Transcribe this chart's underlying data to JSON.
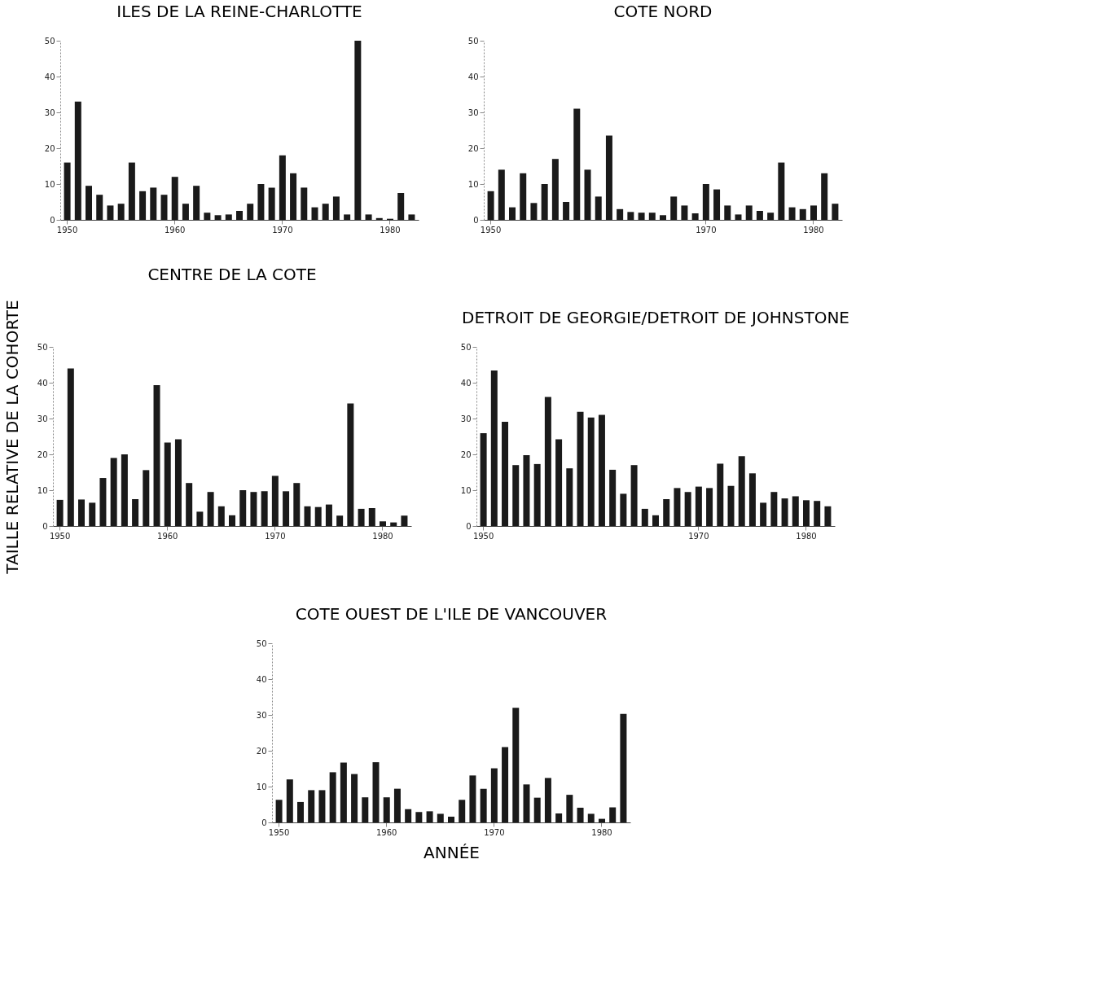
{
  "chart_data": [
    {
      "type": "bar",
      "title": "ILES DE LA REINE-CHARLOTTE",
      "color": "#1a1a1a",
      "grid": false,
      "ylim": [
        0,
        50
      ],
      "yticks": [
        0,
        10,
        20,
        30,
        40,
        50
      ],
      "categories": [
        "1950",
        null,
        null,
        null,
        null,
        null,
        null,
        null,
        null,
        null,
        "1960",
        null,
        null,
        null,
        null,
        null,
        null,
        null,
        null,
        null,
        "1970",
        null,
        null,
        null,
        null,
        null,
        null,
        null,
        null,
        null,
        "1980",
        null,
        null
      ],
      "values": [
        16,
        33,
        9.5,
        7,
        4,
        4.5,
        16,
        8,
        9,
        7,
        12,
        4.5,
        9.5,
        2,
        1.3,
        1.5,
        2.5,
        4.5,
        10,
        9,
        18,
        13,
        9,
        3.5,
        4.5,
        6.5,
        1.5,
        50,
        1.5,
        0.5,
        0.3,
        7.5,
        1.5
      ]
    },
    {
      "type": "bar",
      "title": "COTE NORD",
      "color": "#1a1a1a",
      "grid": false,
      "ylim": [
        0,
        50
      ],
      "yticks": [
        0,
        10,
        20,
        30,
        40,
        50
      ],
      "categories": [
        "1950",
        null,
        null,
        null,
        null,
        null,
        null,
        null,
        null,
        null,
        null,
        null,
        null,
        null,
        null,
        null,
        null,
        null,
        null,
        null,
        "1970",
        null,
        null,
        null,
        null,
        null,
        null,
        null,
        null,
        null,
        "1980",
        null,
        null
      ],
      "values": [
        8,
        14,
        3.5,
        13,
        4.7,
        10,
        17,
        5,
        31,
        14,
        6.5,
        23.5,
        3,
        2.2,
        2,
        2,
        1.3,
        6.5,
        4,
        1.8,
        10,
        8.5,
        4,
        1.5,
        4,
        2.5,
        2,
        16,
        3.5,
        3,
        4,
        13,
        4.5
      ]
    },
    {
      "type": "bar",
      "title": "CENTRE DE LA COTE",
      "ylabel": "TAILLE RELATIVE DE LA COHORTE",
      "color": "#1a1a1a",
      "grid": false,
      "ylim": [
        0,
        50
      ],
      "yticks": [
        0,
        10,
        20,
        30,
        40,
        50
      ],
      "categories": [
        "1950",
        null,
        null,
        null,
        null,
        null,
        null,
        null,
        null,
        null,
        "1960",
        null,
        null,
        null,
        null,
        null,
        null,
        null,
        null,
        null,
        "1970",
        null,
        null,
        null,
        null,
        null,
        null,
        null,
        null,
        null,
        "1980",
        null,
        null
      ],
      "values": [
        7.3,
        44,
        7.4,
        6.5,
        13.4,
        19,
        20,
        7.5,
        15.6,
        39.3,
        23.3,
        24.2,
        12,
        4,
        9.5,
        5.5,
        3,
        10,
        9.5,
        9.7,
        14,
        9.7,
        12,
        5.5,
        5.3,
        6,
        2.9,
        34.2,
        4.8,
        5,
        1.3,
        1,
        2.9
      ]
    },
    {
      "type": "bar",
      "title": "DETROIT DE GEORGIE/DETROIT DE JOHNSTONE",
      "color": "#1a1a1a",
      "grid": false,
      "ylim": [
        0,
        50
      ],
      "yticks": [
        0,
        10,
        20,
        30,
        40,
        50
      ],
      "categories": [
        "1950",
        null,
        null,
        null,
        null,
        null,
        null,
        null,
        null,
        null,
        null,
        null,
        null,
        null,
        null,
        null,
        null,
        null,
        null,
        null,
        "1970",
        null,
        null,
        null,
        null,
        null,
        null,
        null,
        null,
        null,
        "1980",
        null,
        null
      ],
      "values": [
        25.9,
        43.4,
        29.1,
        17,
        19.8,
        17.3,
        36,
        24.2,
        16.1,
        31.9,
        30.3,
        31,
        15.7,
        9,
        17,
        4.8,
        3,
        7.5,
        10.6,
        9.5,
        11,
        10.6,
        17.4,
        11.2,
        19.5,
        14.7,
        6.5,
        9.5,
        7.7,
        8.3,
        7.2,
        7,
        5.5
      ]
    },
    {
      "type": "bar",
      "title": "COTE OUEST DE L'ILE DE VANCOUVER",
      "xlabel": "ANNÉE",
      "color": "#1a1a1a",
      "grid": false,
      "ylim": [
        0,
        50
      ],
      "yticks": [
        0,
        10,
        20,
        30,
        40,
        50
      ],
      "categories": [
        "1950",
        null,
        null,
        null,
        null,
        null,
        null,
        null,
        null,
        null,
        "1960",
        null,
        null,
        null,
        null,
        null,
        null,
        null,
        null,
        null,
        "1970",
        null,
        null,
        null,
        null,
        null,
        null,
        null,
        null,
        null,
        "1980",
        null,
        null
      ],
      "values": [
        6.3,
        12,
        5.7,
        9,
        9,
        14,
        16.7,
        13.5,
        7,
        16.8,
        7,
        9.4,
        3.7,
        2.9,
        3.1,
        2.4,
        1.6,
        6.3,
        13.1,
        9.4,
        15.1,
        21,
        32,
        10.6,
        6.9,
        12.4,
        2.5,
        7.7,
        4.1,
        2.4,
        1,
        4.2,
        30.3
      ]
    }
  ]
}
